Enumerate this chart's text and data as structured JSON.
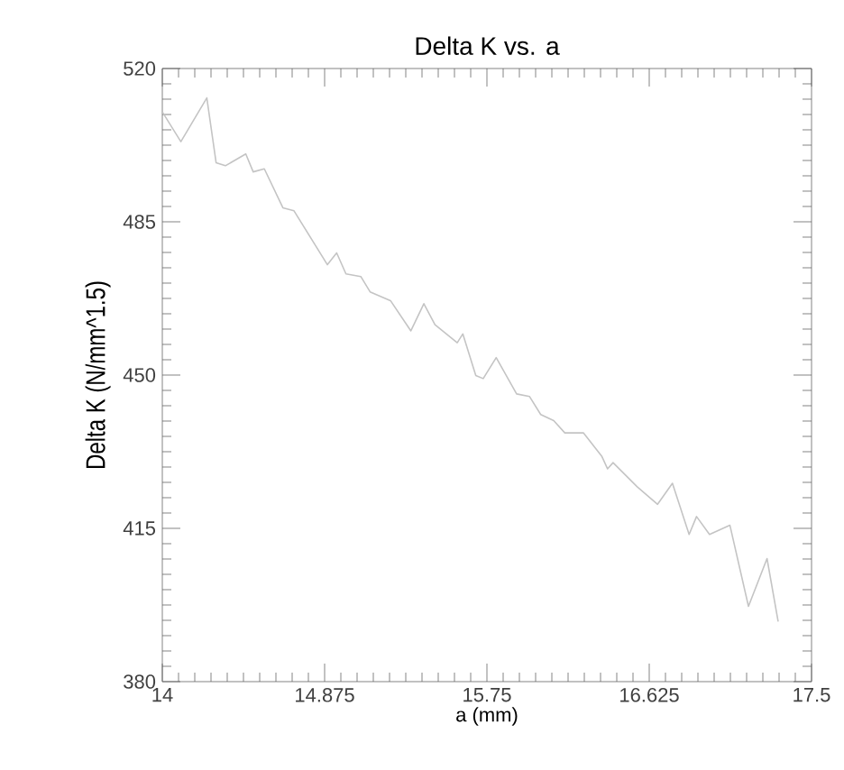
{
  "chart_data": {
    "type": "line",
    "title": "Delta K vs. a",
    "xlabel": "a (mm)",
    "ylabel": "Delta K (N/mm^1.5)",
    "xlim": [
      14,
      17.5
    ],
    "ylim": [
      380,
      520
    ],
    "xticks": [
      14,
      14.875,
      15.75,
      16.625,
      17.5
    ],
    "yticks": [
      380,
      415,
      450,
      485,
      520
    ],
    "grid": false,
    "marker": "none",
    "line_style": "solid",
    "series": [
      {
        "color": "#c4c4c4",
        "x": [
          14.0,
          14.1,
          14.24,
          14.29,
          14.34,
          14.45,
          14.49,
          14.55,
          14.65,
          14.71,
          14.89,
          14.94,
          14.99,
          15.07,
          15.12,
          15.23,
          15.34,
          15.41,
          15.47,
          15.59,
          15.62,
          15.69,
          15.73,
          15.8,
          15.91,
          15.98,
          16.04,
          16.11,
          16.17,
          16.27,
          16.37,
          16.4,
          16.43,
          16.56,
          16.67,
          16.75,
          16.84,
          16.88,
          16.95,
          17.06,
          17.16,
          17.26,
          17.32
        ],
        "values": [
          510.1,
          503.3,
          513.3,
          498.5,
          497.8,
          500.5,
          496.4,
          497.1,
          488.2,
          487.5,
          475.2,
          477.9,
          473.1,
          472.5,
          469.0,
          467.0,
          460.1,
          466.3,
          461.5,
          457.4,
          459.4,
          449.9,
          449.2,
          454.0,
          445.7,
          445.1,
          441.0,
          439.6,
          436.8,
          436.8,
          431.4,
          428.6,
          430.0,
          424.5,
          420.5,
          425.3,
          413.6,
          417.7,
          413.6,
          415.7,
          397.2,
          408.1,
          393.7
        ]
      }
    ]
  }
}
